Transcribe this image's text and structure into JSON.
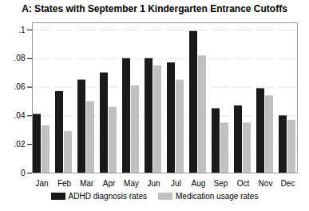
{
  "chart_data": {
    "type": "bar",
    "title": "A: States with September 1 Kindergarten Entrance Cutoffs",
    "categories": [
      "Jan",
      "Feb",
      "Mar",
      "Apr",
      "May",
      "Jun",
      "Jul",
      "Aug",
      "Sep",
      "Oct",
      "Nov",
      "Dec"
    ],
    "series": [
      {
        "name": "ADHD diagnosis rates",
        "color": "#1a1a1a",
        "values": [
          0.041,
          0.057,
          0.065,
          0.07,
          0.08,
          0.08,
          0.077,
          0.099,
          0.045,
          0.047,
          0.059,
          0.04
        ]
      },
      {
        "name": "Medication usage rates",
        "color": "#c0c0c0",
        "values": [
          0.033,
          0.029,
          0.05,
          0.046,
          0.061,
          0.075,
          0.065,
          0.082,
          0.035,
          0.035,
          0.054,
          0.037
        ]
      }
    ],
    "ylim": [
      0,
      0.105
    ],
    "yticks": [
      0,
      {
        "value": 0.02,
        "label": ".02"
      },
      {
        "value": 0.04,
        "label": ".04"
      },
      {
        "value": 0.06,
        "label": ".06"
      },
      {
        "value": 0.08,
        "label": ".08"
      },
      {
        "value": 0.1,
        "label": ".1"
      }
    ],
    "grid": true,
    "legend": "bottom"
  }
}
